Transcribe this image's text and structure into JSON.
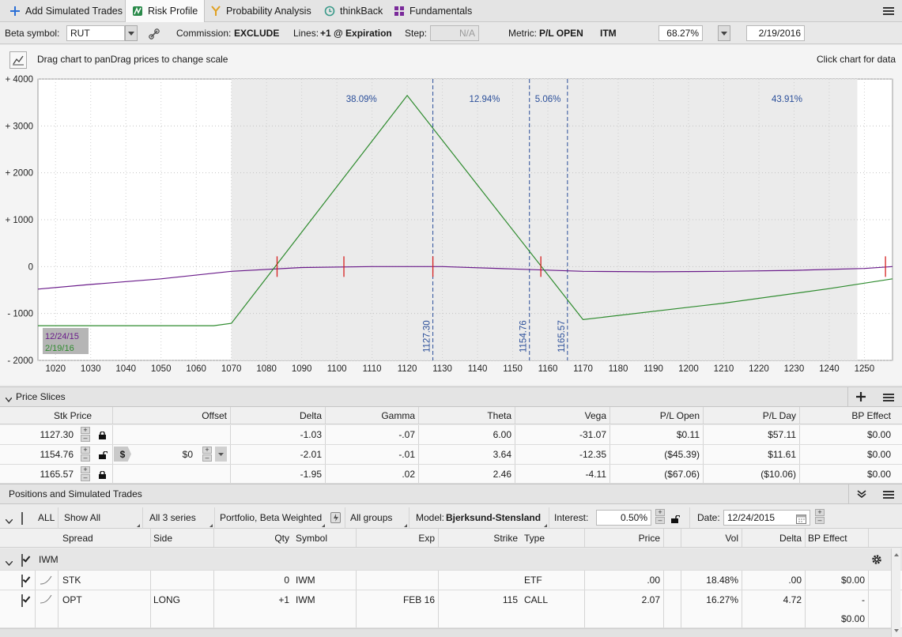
{
  "tabs": [
    {
      "label": "Add Simulated Trades",
      "icon": "plus-icon"
    },
    {
      "label": "Risk Profile",
      "icon": "risk-profile-icon",
      "active": true
    },
    {
      "label": "Probability Analysis",
      "icon": "probability-icon"
    },
    {
      "label": "thinkBack",
      "icon": "thinkback-clock-icon"
    },
    {
      "label": "Fundamentals",
      "icon": "fundamentals-icon"
    }
  ],
  "toolbar": {
    "beta_label": "Beta symbol:",
    "beta_value": "RUT",
    "commission_label": "Commission:",
    "commission_value": "EXCLUDE",
    "lines_label": "Lines:",
    "lines_value": "+1 @ Expiration",
    "step_label": "Step:",
    "step_value": "N/A",
    "metric_label": "Metric:",
    "metric_value": "P/L OPEN",
    "itm_label": "ITM",
    "itm_value": "68.27%",
    "date_value": "2/19/2016"
  },
  "chart_header": {
    "hint": "Drag chart to panDrag prices to change scale",
    "right_hint": "Click chart for data"
  },
  "chart_data": {
    "type": "line",
    "xlim": [
      1015,
      1258
    ],
    "ylim": [
      -2000,
      4000
    ],
    "x_ticks": [
      1020,
      1030,
      1040,
      1050,
      1060,
      1070,
      1080,
      1090,
      1100,
      1110,
      1120,
      1130,
      1140,
      1150,
      1160,
      1170,
      1180,
      1190,
      1200,
      1210,
      1220,
      1230,
      1240,
      1250
    ],
    "y_ticks": [
      {
        "value": 4000,
        "label": "+ 4000"
      },
      {
        "value": 3000,
        "label": "+ 3000"
      },
      {
        "value": 2000,
        "label": "+ 2000"
      },
      {
        "value": 1000,
        "label": "+ 1000"
      },
      {
        "value": 0,
        "label": "0"
      },
      {
        "value": -1000,
        "label": "- 1000"
      },
      {
        "value": -2000,
        "label": "- 2000"
      }
    ],
    "shaded_range": [
      1070,
      1248
    ],
    "prob_labels": [
      {
        "x": 1107,
        "text": "38.09%"
      },
      {
        "x": 1142,
        "text": "12.94%"
      },
      {
        "x": 1160,
        "text": "5.06%"
      },
      {
        "x": 1228,
        "text": "43.91%"
      }
    ],
    "price_slices": [
      {
        "x": 1127.3,
        "label": "1127.30"
      },
      {
        "x": 1154.76,
        "label": "1154.76"
      },
      {
        "x": 1165.57,
        "label": "1165.57"
      }
    ],
    "series": [
      {
        "name": "12/24/15",
        "color": "#6a1b8a",
        "points": [
          [
            1015,
            -480
          ],
          [
            1030,
            -380
          ],
          [
            1050,
            -260
          ],
          [
            1070,
            -100
          ],
          [
            1090,
            -20
          ],
          [
            1110,
            0
          ],
          [
            1130,
            0
          ],
          [
            1150,
            -50
          ],
          [
            1170,
            -100
          ],
          [
            1190,
            -110
          ],
          [
            1210,
            -100
          ],
          [
            1230,
            -80
          ],
          [
            1250,
            -40
          ],
          [
            1258,
            0
          ]
        ]
      },
      {
        "name": "2/19/16",
        "color": "#2e8b2e",
        "points": [
          [
            1015,
            -1260
          ],
          [
            1065,
            -1260
          ],
          [
            1070,
            -1210
          ],
          [
            1120,
            3650
          ],
          [
            1170,
            -1130
          ],
          [
            1210,
            -780
          ],
          [
            1240,
            -470
          ],
          [
            1258,
            -260
          ]
        ]
      }
    ],
    "markers": [
      1083,
      1102,
      1127.3,
      1158,
      1256
    ]
  },
  "price_slices": {
    "title": "Price Slices",
    "columns": [
      "Stk Price",
      "Offset",
      "Delta",
      "Gamma",
      "Theta",
      "Vega",
      "P/L Open",
      "P/L Day",
      "BP Effect"
    ],
    "rows": [
      {
        "stk": "1127.30",
        "offset": "",
        "delta": "-1.03",
        "gamma": "-.07",
        "theta": "6.00",
        "vega": "-31.07",
        "pl_open": "$0.11",
        "pl_day": "$57.11",
        "bp": "$0.00"
      },
      {
        "stk": "1154.76",
        "offset": "$0",
        "delta": "-2.01",
        "gamma": "-.01",
        "theta": "3.64",
        "vega": "-12.35",
        "pl_open": "($45.39)",
        "pl_day": "$11.61",
        "bp": "$0.00"
      },
      {
        "stk": "1165.57",
        "offset": "",
        "delta": "-1.95",
        "gamma": ".02",
        "theta": "2.46",
        "vega": "-4.11",
        "pl_open": "($67.06)",
        "pl_day": "($10.06)",
        "bp": "$0.00"
      }
    ]
  },
  "positions": {
    "title": "Positions and Simulated Trades",
    "filter": {
      "all_label": "ALL",
      "show": "Show All",
      "series": "All 3 series",
      "portfolio": "Portfolio, Beta Weighted",
      "groups": "All groups",
      "model_label": "Model:",
      "model_value": "Bjerksund-Stensland",
      "interest_label": "Interest:",
      "interest_value": "0.50%",
      "date_label": "Date:",
      "date_value": "12/24/2015"
    },
    "columns": [
      "Spread",
      "Side",
      "Qty",
      "Symbol",
      "Exp",
      "Strike",
      "Type",
      "Price",
      "Vol",
      "Delta",
      "BP Effect"
    ],
    "group": "IWM",
    "rows": [
      {
        "spread": "STK",
        "side": "",
        "qty": "0",
        "symbol": "IWM",
        "exp": "",
        "strike": "",
        "type": "ETF",
        "price": ".00",
        "vol": "18.48%",
        "delta": ".00",
        "bp": "$0.00"
      },
      {
        "spread": "OPT",
        "side": "LONG",
        "qty": "+1",
        "symbol": "IWM",
        "exp": "FEB 16",
        "strike": "115",
        "type": "CALL",
        "price": "2.07",
        "vol": "16.27%",
        "delta": "4.72",
        "bp": "-",
        "bp2": "$0.00"
      }
    ]
  }
}
